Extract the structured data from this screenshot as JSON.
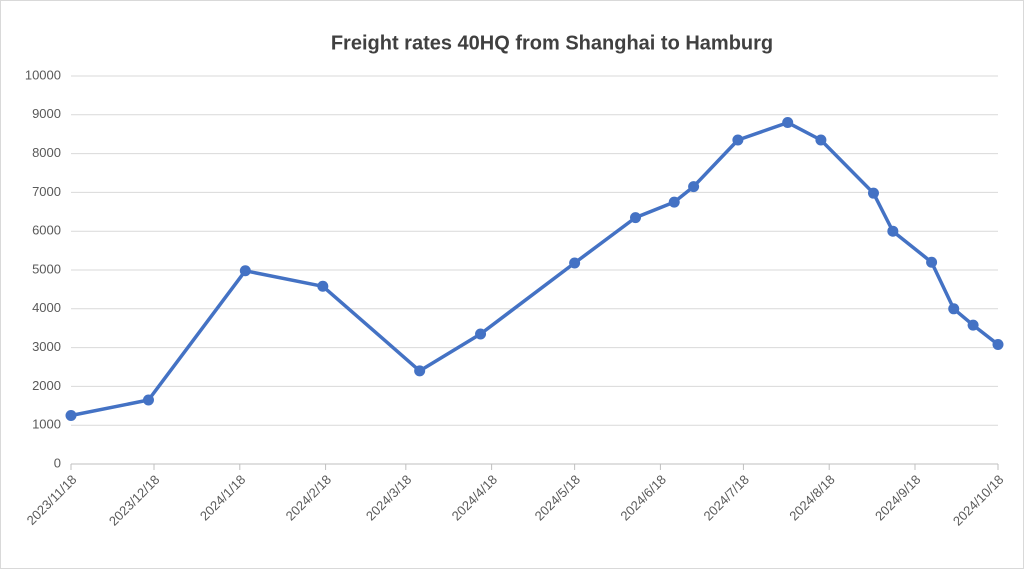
{
  "chart_data": {
    "type": "line",
    "title": "Freight rates 40HQ from Shanghai to Hamburg",
    "x": [
      "2023/11/18",
      "2023/12/16",
      "2024/1/20",
      "2024/2/17",
      "2024/3/23",
      "2024/4/14",
      "2024/5/18",
      "2024/6/9",
      "2024/6/23",
      "2024/6/30",
      "2024/7/16",
      "2024/8/3",
      "2024/8/15",
      "2024/9/3",
      "2024/9/10",
      "2024/9/24",
      "2024/10/2",
      "2024/10/9",
      "2024/10/18"
    ],
    "series": [
      {
        "color": "#4472c4",
        "values": [
          1250,
          1650,
          4980,
          4580,
          2400,
          3350,
          5180,
          6350,
          6750,
          7150,
          8350,
          8800,
          8350,
          6980,
          6000,
          5200,
          4000,
          3580,
          3080
        ]
      }
    ],
    "xlim": [
      "2023/11/18",
      "2024/10/18"
    ],
    "xticks": [
      "2023/11/18",
      "2023/12/18",
      "2024/1/18",
      "2024/2/18",
      "2024/3/18",
      "2024/4/18",
      "2024/5/18",
      "2024/6/18",
      "2024/7/18",
      "2024/8/18",
      "2024/9/18",
      "2024/10/18"
    ],
    "ylim": [
      0,
      10000
    ],
    "yticks": [
      0,
      1000,
      2000,
      3000,
      4000,
      5000,
      6000,
      7000,
      8000,
      9000,
      10000
    ],
    "grid": true
  }
}
